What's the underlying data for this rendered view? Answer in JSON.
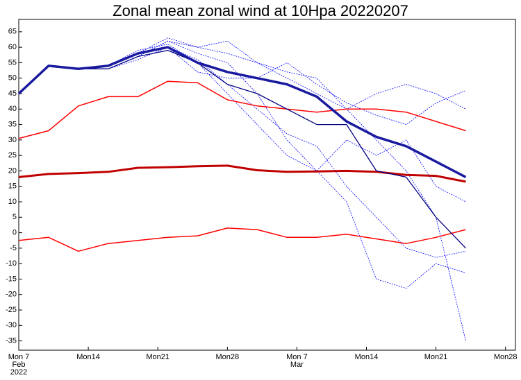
{
  "chart_data": {
    "type": "line",
    "title": "Zonal mean zonal wind at 10Hpa 20220207",
    "x": [
      0,
      3,
      6,
      9,
      12,
      15,
      18,
      21,
      24,
      27,
      30,
      33,
      36,
      39,
      42,
      45
    ],
    "xlim": [
      0,
      50
    ],
    "xticks": [
      {
        "value": 0,
        "label": "Mon 7"
      },
      {
        "value": 7,
        "label": "Mon14"
      },
      {
        "value": 14,
        "label": "Mon21"
      },
      {
        "value": 21,
        "label": "Mon28"
      },
      {
        "value": 28,
        "label": "Mon 7"
      },
      {
        "value": 35,
        "label": "Mon14"
      },
      {
        "value": 42,
        "label": "Mon21"
      },
      {
        "value": 49,
        "label": "Mon28"
      }
    ],
    "x_sublabels": [
      {
        "value": 0,
        "label": "Feb"
      },
      {
        "value": 0,
        "label": "2022"
      },
      {
        "value": 28,
        "label": "Mar"
      }
    ],
    "ylim": [
      -38,
      69
    ],
    "yticks": [
      -35,
      -30,
      -25,
      -20,
      -15,
      -10,
      -5,
      0,
      5,
      10,
      15,
      20,
      25,
      30,
      35,
      40,
      45,
      50,
      55,
      60,
      65
    ],
    "grid": false,
    "series": [
      {
        "color": "#0000ff",
        "width": 0.8,
        "dashed": true,
        "values": [
          45,
          54,
          53,
          53,
          57,
          62,
          58,
          55,
          45,
          30,
          20,
          10,
          -15,
          -18,
          -10,
          -13
        ]
      },
      {
        "color": "#0000ff",
        "width": 0.8,
        "dashed": true,
        "values": [
          45,
          54,
          53,
          54,
          58,
          63,
          60,
          62,
          55,
          50,
          45,
          40,
          45,
          48,
          45,
          40
        ]
      },
      {
        "color": "#0000ff",
        "width": 0.8,
        "dashed": true,
        "values": [
          45,
          54,
          53,
          54,
          59,
          61,
          55,
          45,
          35,
          25,
          20,
          30,
          25,
          30,
          15,
          10
        ]
      },
      {
        "color": "#0000ff",
        "width": 0.8,
        "dashed": true,
        "values": [
          45,
          54,
          53,
          53,
          57,
          62,
          60,
          58,
          55,
          52,
          50,
          40,
          30,
          20,
          5,
          -35
        ]
      },
      {
        "color": "#0000ff",
        "width": 0.8,
        "dashed": true,
        "values": [
          45,
          54,
          53,
          54,
          58,
          60,
          52,
          50,
          50,
          55,
          48,
          42,
          38,
          35,
          42,
          46
        ]
      },
      {
        "color": "#0000ff",
        "width": 0.8,
        "dashed": true,
        "values": [
          45,
          54,
          53,
          53,
          56,
          60,
          56,
          48,
          40,
          32,
          28,
          15,
          5,
          -5,
          -8,
          -6
        ]
      },
      {
        "color": "#ff0000",
        "width": 1.5,
        "dashed": false,
        "values": [
          30.5,
          33,
          41,
          44,
          44,
          49,
          48.5,
          43,
          41,
          40,
          39,
          40,
          40,
          39,
          36,
          33
        ]
      },
      {
        "color": "#ff0000",
        "width": 1.5,
        "dashed": false,
        "values": [
          -2.5,
          -1.5,
          -6,
          -3.5,
          -2.5,
          -1.5,
          -1,
          1.5,
          1,
          -1.5,
          -1.5,
          -0.5,
          -2,
          -3.5,
          -1.5,
          1
        ]
      },
      {
        "color": "#c00000",
        "width": 3,
        "dashed": false,
        "values": [
          18,
          19,
          19.3,
          19.7,
          21,
          21.2,
          21.5,
          21.7,
          20.2,
          19.7,
          19.8,
          20,
          19.7,
          18.7,
          18.4,
          16.5
        ]
      },
      {
        "color": "#000080",
        "width": 1.3,
        "dashed": false,
        "values": [
          45,
          54,
          53,
          53,
          57,
          59,
          55,
          48,
          45,
          40,
          35,
          35,
          20,
          18,
          5,
          -5
        ]
      },
      {
        "color": "#1a1aa0",
        "width": 3.5,
        "dashed": false,
        "values": [
          45,
          54,
          53,
          54,
          58,
          60,
          55,
          52,
          50,
          48,
          44,
          36,
          31,
          28,
          23,
          18
        ]
      }
    ]
  }
}
